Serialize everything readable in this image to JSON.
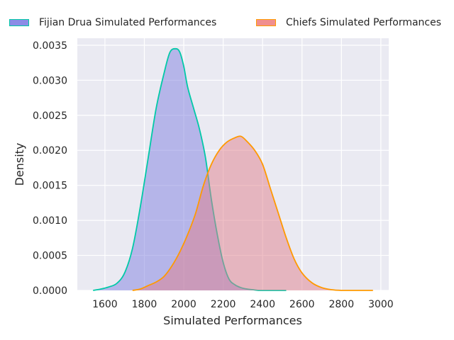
{
  "chart_data": {
    "type": "area",
    "title": "",
    "xlabel": "Simulated Performances",
    "ylabel": "Density",
    "xlim": [
      1460,
      3040
    ],
    "ylim": [
      0,
      0.0036
    ],
    "xticks": [
      "1600",
      "1800",
      "2000",
      "2200",
      "2400",
      "2600",
      "2800",
      "3000"
    ],
    "yticks": [
      "0.0000",
      "0.0005",
      "0.0010",
      "0.0015",
      "0.0020",
      "0.0025",
      "0.0030",
      "0.0035"
    ],
    "grid": true,
    "legend_position": "top",
    "series": [
      {
        "name": "Fijian Drua Simulated Performances",
        "fill": "#7f7fe0",
        "line": "#00c9a7",
        "swatch": "#8c8ce6",
        "x": [
          1540,
          1580,
          1620,
          1660,
          1700,
          1740,
          1780,
          1820,
          1860,
          1900,
          1930,
          1960,
          1980,
          2000,
          2020,
          2050,
          2080,
          2110,
          2140,
          2170,
          2200,
          2230,
          2260,
          2290,
          2320,
          2350,
          2380,
          2420,
          2470,
          2520
        ],
        "values": [
          0.0,
          2e-05,
          5e-05,
          0.0001,
          0.00025,
          0.0006,
          0.0012,
          0.0019,
          0.0026,
          0.0031,
          0.0034,
          0.00345,
          0.0034,
          0.0032,
          0.0029,
          0.0026,
          0.0023,
          0.0019,
          0.0013,
          0.0008,
          0.0004,
          0.00016,
          8e-05,
          4e-05,
          2e-05,
          1e-05,
          0.0,
          0.0,
          0.0,
          0.0
        ]
      },
      {
        "name": "Chiefs Simulated Performances",
        "fill": "#e07f8c",
        "line": "#ff9900",
        "swatch": "#f08f8f",
        "x": [
          1740,
          1780,
          1820,
          1860,
          1900,
          1940,
          1980,
          2020,
          2060,
          2100,
          2140,
          2180,
          2220,
          2260,
          2290,
          2320,
          2360,
          2400,
          2440,
          2480,
          2520,
          2560,
          2600,
          2650,
          2700,
          2750,
          2800,
          2850,
          2900,
          2960
        ],
        "values": [
          0.0,
          2e-05,
          7e-05,
          0.00012,
          0.0002,
          0.00035,
          0.00055,
          0.0008,
          0.0011,
          0.0015,
          0.0018,
          0.002,
          0.00212,
          0.00218,
          0.0022,
          0.00213,
          0.002,
          0.0018,
          0.00145,
          0.0011,
          0.00075,
          0.00045,
          0.00025,
          0.00011,
          4e-05,
          1e-05,
          0.0,
          0.0,
          0.0,
          0.0
        ]
      }
    ]
  }
}
